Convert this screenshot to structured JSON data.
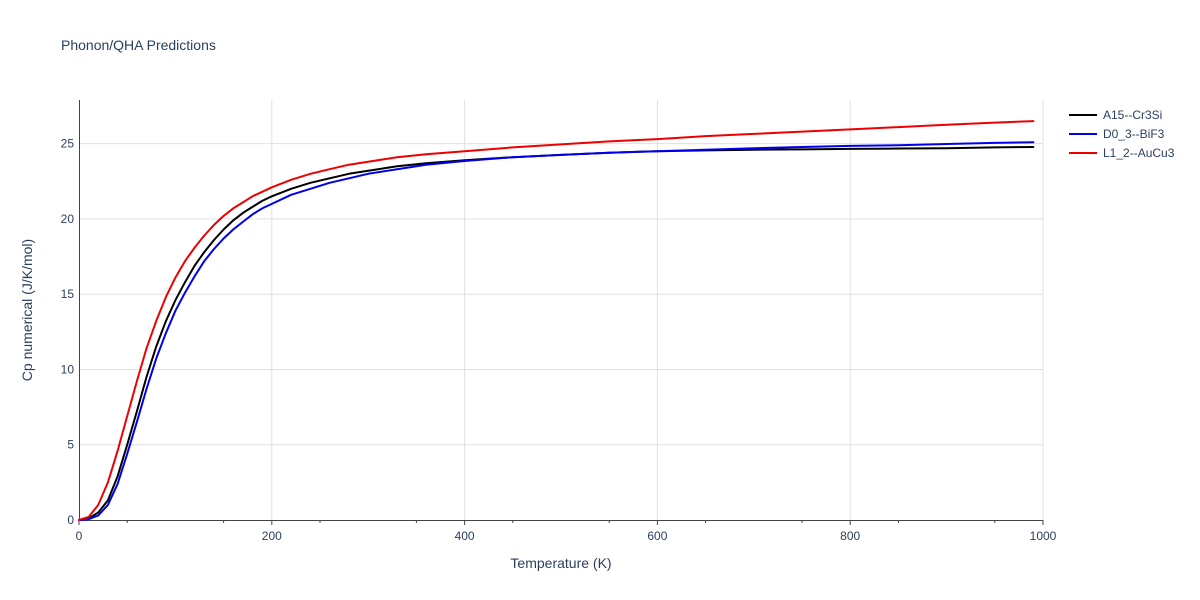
{
  "chart_data": {
    "type": "line",
    "title": "Phonon/QHA Predictions",
    "xlabel": "Temperature (K)",
    "ylabel": "Cp numerical (J/K/mol)",
    "xlim": [
      0,
      1000
    ],
    "ylim": [
      0,
      27.9
    ],
    "x_ticks": [
      0,
      200,
      400,
      600,
      800,
      1000
    ],
    "y_ticks": [
      0,
      5,
      10,
      15,
      20,
      25
    ],
    "grid": true,
    "legend_position": "right-top",
    "x": [
      0,
      10,
      20,
      30,
      40,
      50,
      60,
      70,
      80,
      90,
      100,
      110,
      120,
      130,
      140,
      150,
      160,
      170,
      180,
      190,
      200,
      220,
      240,
      260,
      280,
      300,
      330,
      360,
      400,
      450,
      500,
      550,
      600,
      650,
      700,
      750,
      800,
      850,
      900,
      950,
      990
    ],
    "series": [
      {
        "name": "A15--Cr3Si",
        "color": "#000000",
        "values": [
          0,
          0.1,
          0.5,
          1.3,
          2.9,
          5.0,
          7.2,
          9.5,
          11.5,
          13.2,
          14.6,
          15.8,
          16.9,
          17.8,
          18.6,
          19.3,
          19.9,
          20.4,
          20.8,
          21.2,
          21.5,
          22.0,
          22.4,
          22.7,
          23.0,
          23.2,
          23.5,
          23.7,
          23.9,
          24.1,
          24.25,
          24.4,
          24.5,
          24.55,
          24.6,
          24.62,
          24.65,
          24.68,
          24.7,
          24.75,
          24.78
        ]
      },
      {
        "name": "D0_3--BiF3",
        "color": "#0000ee",
        "values": [
          0,
          0.05,
          0.3,
          1.0,
          2.4,
          4.4,
          6.5,
          8.7,
          10.7,
          12.4,
          13.9,
          15.1,
          16.2,
          17.2,
          18.0,
          18.7,
          19.3,
          19.8,
          20.3,
          20.7,
          21.0,
          21.6,
          22.0,
          22.4,
          22.7,
          23.0,
          23.3,
          23.6,
          23.85,
          24.1,
          24.25,
          24.4,
          24.5,
          24.6,
          24.7,
          24.78,
          24.85,
          24.9,
          24.98,
          25.05,
          25.1
        ]
      },
      {
        "name": "L1_2--AuCu3",
        "color": "#ee0000",
        "values": [
          0,
          0.2,
          1.0,
          2.5,
          4.6,
          6.9,
          9.2,
          11.4,
          13.2,
          14.8,
          16.1,
          17.2,
          18.1,
          18.9,
          19.6,
          20.2,
          20.7,
          21.1,
          21.5,
          21.8,
          22.1,
          22.6,
          23.0,
          23.3,
          23.6,
          23.8,
          24.1,
          24.3,
          24.5,
          24.75,
          24.95,
          25.15,
          25.3,
          25.5,
          25.65,
          25.8,
          25.95,
          26.1,
          26.25,
          26.4,
          26.5
        ]
      }
    ]
  }
}
